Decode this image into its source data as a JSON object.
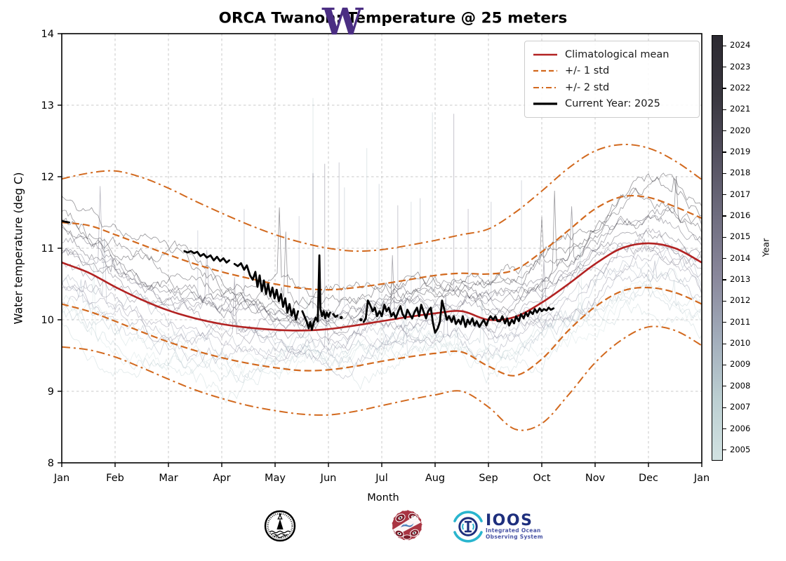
{
  "title": "ORCA Twanoh: Temperature @ 25 meters",
  "axes": {
    "xlabel": "Month",
    "ylabel": "Water temperature (deg C)",
    "x_tick_labels": [
      "Jan",
      "Feb",
      "Mar",
      "Apr",
      "May",
      "Jun",
      "Jul",
      "Aug",
      "Sep",
      "Oct",
      "Nov",
      "Dec",
      "Jan"
    ],
    "y_tick_labels": [
      "8",
      "9",
      "10",
      "11",
      "12",
      "13",
      "14"
    ],
    "xlim": [
      0,
      12
    ],
    "ylim": [
      8,
      14
    ],
    "grid": true
  },
  "legend": {
    "items": [
      {
        "label": "Climatological mean",
        "style": "mean"
      },
      {
        "label": "+/- 1 std",
        "style": "std1"
      },
      {
        "label": "+/- 2 std",
        "style": "std2"
      },
      {
        "label": "Current Year: 2025",
        "style": "current"
      }
    ]
  },
  "colorbar": {
    "label": "Year",
    "years": [
      2005,
      2006,
      2007,
      2008,
      2009,
      2010,
      2011,
      2012,
      2013,
      2014,
      2015,
      2016,
      2017,
      2018,
      2019,
      2020,
      2021,
      2022,
      2023,
      2024
    ]
  },
  "colors": {
    "mean": "#b22222",
    "std": "#d2691e",
    "current": "#000000",
    "grid": "#c9c9c9",
    "frame": "#000000",
    "colormap_light_to_dark": [
      "#d2e2e2",
      "#bccfd2",
      "#a2adbb",
      "#8a889c",
      "#706e80",
      "#545160",
      "#39373f",
      "#2c2a31"
    ]
  },
  "chart_data": {
    "type": "line",
    "title": "ORCA Twanoh: Temperature @ 25 meters",
    "xlabel": "Month",
    "ylabel": "Water temperature (deg C)",
    "xlim": [
      0,
      12
    ],
    "ylim": [
      8,
      14
    ],
    "x_step": 0.5,
    "series_bands": {
      "mean": {
        "name": "Climatological mean",
        "values": [
          10.8,
          10.66,
          10.46,
          10.28,
          10.13,
          10.02,
          9.94,
          9.89,
          9.86,
          9.85,
          9.87,
          9.92,
          9.98,
          10.04,
          10.09,
          10.12,
          10.0,
          10.04,
          10.24,
          10.5,
          10.78,
          11.0,
          11.07,
          11.0,
          10.8
        ]
      },
      "plus1": {
        "name": "+1 std",
        "values": [
          11.36,
          11.32,
          11.19,
          11.05,
          10.91,
          10.78,
          10.67,
          10.58,
          10.5,
          10.44,
          10.42,
          10.45,
          10.5,
          10.56,
          10.62,
          10.65,
          10.64,
          10.7,
          10.95,
          11.25,
          11.55,
          11.72,
          11.71,
          11.58,
          11.42
        ]
      },
      "minus1": {
        "name": "-1 std",
        "values": [
          10.22,
          10.12,
          9.98,
          9.83,
          9.69,
          9.57,
          9.47,
          9.39,
          9.33,
          9.29,
          9.3,
          9.35,
          9.42,
          9.48,
          9.53,
          9.55,
          9.35,
          9.22,
          9.45,
          9.85,
          10.18,
          10.4,
          10.45,
          10.38,
          10.22
        ]
      },
      "plus2": {
        "name": "+2 std",
        "values": [
          11.97,
          12.05,
          12.08,
          11.99,
          11.84,
          11.66,
          11.49,
          11.33,
          11.19,
          11.08,
          11.0,
          10.96,
          10.98,
          11.04,
          11.11,
          11.19,
          11.27,
          11.5,
          11.8,
          12.12,
          12.36,
          12.45,
          12.4,
          12.22,
          11.96
        ]
      },
      "minus2": {
        "name": "-2 std",
        "values": [
          9.62,
          9.58,
          9.48,
          9.33,
          9.17,
          9.02,
          8.9,
          8.8,
          8.73,
          8.68,
          8.67,
          8.72,
          8.8,
          8.88,
          8.95,
          9.0,
          8.78,
          8.47,
          8.55,
          8.95,
          9.4,
          9.72,
          9.9,
          9.85,
          9.64
        ]
      }
    },
    "current_year": {
      "label": "Current Year: 2025",
      "year": 2025,
      "segments": [
        [
          [
            0.0,
            11.38
          ],
          [
            0.07,
            11.37
          ],
          [
            0.14,
            11.36
          ]
        ],
        [
          [
            2.3,
            10.96
          ],
          [
            2.36,
            10.94
          ],
          [
            2.42,
            10.96
          ],
          [
            2.48,
            10.93
          ],
          [
            2.54,
            10.95
          ],
          [
            2.6,
            10.89
          ],
          [
            2.66,
            10.92
          ],
          [
            2.72,
            10.87
          ],
          [
            2.79,
            10.9
          ],
          [
            2.85,
            10.83
          ],
          [
            2.91,
            10.88
          ],
          [
            2.97,
            10.82
          ],
          [
            3.03,
            10.86
          ],
          [
            3.09,
            10.8
          ],
          [
            3.14,
            10.83
          ]
        ],
        [
          [
            3.24,
            10.78
          ],
          [
            3.3,
            10.75
          ],
          [
            3.36,
            10.79
          ],
          [
            3.42,
            10.7
          ],
          [
            3.47,
            10.76
          ],
          [
            3.53,
            10.62
          ],
          [
            3.58,
            10.56
          ],
          [
            3.63,
            10.67
          ],
          [
            3.67,
            10.46
          ],
          [
            3.71,
            10.62
          ],
          [
            3.75,
            10.4
          ],
          [
            3.79,
            10.55
          ],
          [
            3.83,
            10.36
          ],
          [
            3.87,
            10.5
          ],
          [
            3.91,
            10.33
          ],
          [
            3.95,
            10.45
          ],
          [
            3.99,
            10.3
          ],
          [
            4.03,
            10.42
          ],
          [
            4.07,
            10.26
          ],
          [
            4.11,
            10.36
          ],
          [
            4.15,
            10.18
          ],
          [
            4.19,
            10.3
          ],
          [
            4.23,
            10.1
          ],
          [
            4.27,
            10.22
          ],
          [
            4.31,
            10.06
          ],
          [
            4.35,
            10.15
          ],
          [
            4.39,
            10.0
          ],
          [
            4.43,
            10.12
          ]
        ],
        [
          [
            4.51,
            10.12
          ],
          [
            4.55,
            10.05
          ],
          [
            4.59,
            9.98
          ],
          [
            4.63,
            9.88
          ],
          [
            4.66,
            9.97
          ],
          [
            4.69,
            9.86
          ],
          [
            4.72,
            9.95
          ],
          [
            4.76,
            10.03
          ],
          [
            4.8,
            9.98
          ],
          [
            4.83,
            10.9
          ],
          [
            4.85,
            10.15
          ],
          [
            4.88,
            10.05
          ],
          [
            4.91,
            10.12
          ],
          [
            4.94,
            10.02
          ],
          [
            4.97,
            10.1
          ],
          [
            5.0,
            10.04
          ],
          [
            5.03,
            10.1
          ]
        ],
        [
          [
            5.09,
            10.08
          ],
          [
            5.13,
            10.04
          ],
          [
            5.17,
            10.06
          ]
        ],
        [
          [
            5.66,
            9.97
          ],
          [
            5.7,
            10.02
          ],
          [
            5.74,
            10.27
          ],
          [
            5.78,
            10.21
          ],
          [
            5.83,
            10.12
          ],
          [
            5.87,
            10.17
          ],
          [
            5.91,
            10.05
          ],
          [
            5.96,
            10.12
          ],
          [
            6.0,
            10.05
          ],
          [
            6.05,
            10.21
          ],
          [
            6.09,
            10.12
          ],
          [
            6.13,
            10.17
          ],
          [
            6.18,
            10.05
          ],
          [
            6.22,
            10.1
          ],
          [
            6.26,
            10.02
          ],
          [
            6.31,
            10.12
          ],
          [
            6.35,
            10.19
          ],
          [
            6.39,
            10.08
          ],
          [
            6.44,
            10.02
          ],
          [
            6.48,
            10.14
          ],
          [
            6.53,
            10.07
          ],
          [
            6.57,
            10.02
          ],
          [
            6.61,
            10.1
          ],
          [
            6.66,
            10.17
          ],
          [
            6.7,
            10.05
          ],
          [
            6.74,
            10.21
          ],
          [
            6.79,
            10.1
          ],
          [
            6.83,
            10.02
          ],
          [
            6.87,
            10.12
          ],
          [
            6.92,
            10.17
          ],
          [
            6.96,
            9.95
          ],
          [
            7.0,
            9.82
          ],
          [
            7.05,
            9.88
          ],
          [
            7.09,
            9.97
          ],
          [
            7.13,
            10.27
          ],
          [
            7.18,
            10.12
          ],
          [
            7.22,
            10.0
          ],
          [
            7.26,
            10.05
          ],
          [
            7.31,
            9.97
          ],
          [
            7.35,
            10.05
          ],
          [
            7.39,
            9.94
          ],
          [
            7.44,
            10.0
          ],
          [
            7.48,
            9.94
          ],
          [
            7.52,
            10.05
          ],
          [
            7.57,
            9.9
          ],
          [
            7.61,
            10.0
          ],
          [
            7.65,
            9.94
          ],
          [
            7.7,
            10.02
          ],
          [
            7.74,
            9.92
          ],
          [
            7.78,
            9.98
          ],
          [
            7.83,
            9.9
          ],
          [
            7.87,
            9.95
          ],
          [
            7.91,
            10.0
          ],
          [
            7.96,
            9.92
          ],
          [
            8.0,
            10.0
          ],
          [
            8.04,
            10.05
          ],
          [
            8.09,
            10.0
          ],
          [
            8.13,
            10.05
          ],
          [
            8.17,
            9.98
          ],
          [
            8.22,
            9.98
          ],
          [
            8.26,
            10.05
          ],
          [
            8.31,
            9.95
          ],
          [
            8.35,
            10.02
          ],
          [
            8.39,
            9.92
          ],
          [
            8.44,
            10.0
          ],
          [
            8.48,
            9.95
          ],
          [
            8.52,
            10.05
          ],
          [
            8.57,
            9.98
          ],
          [
            8.61,
            10.08
          ],
          [
            8.66,
            10.02
          ],
          [
            8.7,
            10.1
          ],
          [
            8.74,
            10.05
          ],
          [
            8.78,
            10.12
          ],
          [
            8.83,
            10.08
          ],
          [
            8.87,
            10.15
          ],
          [
            8.91,
            10.1
          ],
          [
            8.96,
            10.16
          ],
          [
            9.0,
            10.12
          ],
          [
            9.04,
            10.15
          ],
          [
            9.09,
            10.13
          ],
          [
            9.13,
            10.17
          ],
          [
            9.17,
            10.14
          ],
          [
            9.22,
            10.16
          ]
        ]
      ],
      "dots": [
        [
          5.24,
          10.03
        ],
        [
          5.61,
          10.0
        ]
      ]
    },
    "historical": {
      "first_year": 2005,
      "last_year": 2024,
      "seed": 977,
      "spikes": [
        [
          4.71,
          13.1,
          0.15
        ],
        [
          4.71,
          12.05,
          0.55
        ],
        [
          4.45,
          11.45,
          0.3
        ],
        [
          4.93,
          12.18,
          0.55
        ],
        [
          5.2,
          12.2,
          0.4
        ],
        [
          5.72,
          12.4,
          0.18
        ],
        [
          5.3,
          11.85,
          0.25
        ],
        [
          6.3,
          11.6,
          0.45
        ],
        [
          6.55,
          11.65,
          0.2
        ],
        [
          6.95,
          12.9,
          0.22
        ],
        [
          7.35,
          12.88,
          0.5
        ],
        [
          8.62,
          11.95,
          0.3
        ],
        [
          3.42,
          11.55,
          0.35
        ],
        [
          2.55,
          11.25,
          0.3
        ],
        [
          8.05,
          11.65,
          0.35
        ],
        [
          7.62,
          11.55,
          0.45
        ],
        [
          5.95,
          11.9,
          0.25
        ],
        [
          6.72,
          11.7,
          0.35
        ]
      ]
    }
  },
  "logos": {
    "uw_text": "W",
    "ioos_title": "IOOS",
    "ioos_sub1": "Integrated Ocean",
    "ioos_sub2": "Observing System"
  }
}
